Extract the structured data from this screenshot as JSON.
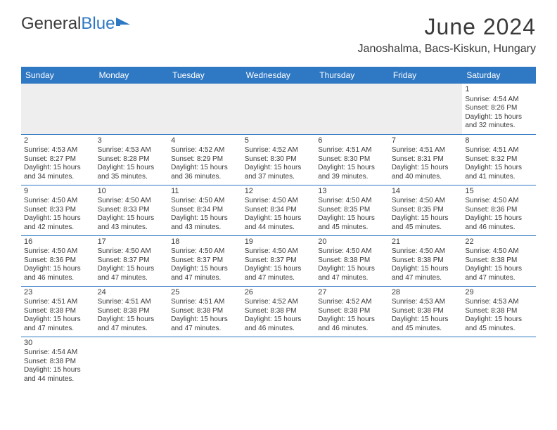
{
  "logo": {
    "part1": "General",
    "part2": "Blue"
  },
  "title": "June 2024",
  "location": "Janoshalma, Bacs-Kiskun, Hungary",
  "colors": {
    "header_bg": "#2f78c3",
    "header_text": "#ffffff",
    "text": "#3a3a3a",
    "empty_bg": "#eeeeee",
    "row_border": "#2f78c3"
  },
  "weekdays": [
    "Sunday",
    "Monday",
    "Tuesday",
    "Wednesday",
    "Thursday",
    "Friday",
    "Saturday"
  ],
  "days": {
    "1": {
      "sunrise": "4:54 AM",
      "sunset": "8:26 PM",
      "dl1": "15 hours",
      "dl2": "and 32 minutes."
    },
    "2": {
      "sunrise": "4:53 AM",
      "sunset": "8:27 PM",
      "dl1": "15 hours",
      "dl2": "and 34 minutes."
    },
    "3": {
      "sunrise": "4:53 AM",
      "sunset": "8:28 PM",
      "dl1": "15 hours",
      "dl2": "and 35 minutes."
    },
    "4": {
      "sunrise": "4:52 AM",
      "sunset": "8:29 PM",
      "dl1": "15 hours",
      "dl2": "and 36 minutes."
    },
    "5": {
      "sunrise": "4:52 AM",
      "sunset": "8:30 PM",
      "dl1": "15 hours",
      "dl2": "and 37 minutes."
    },
    "6": {
      "sunrise": "4:51 AM",
      "sunset": "8:30 PM",
      "dl1": "15 hours",
      "dl2": "and 39 minutes."
    },
    "7": {
      "sunrise": "4:51 AM",
      "sunset": "8:31 PM",
      "dl1": "15 hours",
      "dl2": "and 40 minutes."
    },
    "8": {
      "sunrise": "4:51 AM",
      "sunset": "8:32 PM",
      "dl1": "15 hours",
      "dl2": "and 41 minutes."
    },
    "9": {
      "sunrise": "4:50 AM",
      "sunset": "8:33 PM",
      "dl1": "15 hours",
      "dl2": "and 42 minutes."
    },
    "10": {
      "sunrise": "4:50 AM",
      "sunset": "8:33 PM",
      "dl1": "15 hours",
      "dl2": "and 43 minutes."
    },
    "11": {
      "sunrise": "4:50 AM",
      "sunset": "8:34 PM",
      "dl1": "15 hours",
      "dl2": "and 43 minutes."
    },
    "12": {
      "sunrise": "4:50 AM",
      "sunset": "8:34 PM",
      "dl1": "15 hours",
      "dl2": "and 44 minutes."
    },
    "13": {
      "sunrise": "4:50 AM",
      "sunset": "8:35 PM",
      "dl1": "15 hours",
      "dl2": "and 45 minutes."
    },
    "14": {
      "sunrise": "4:50 AM",
      "sunset": "8:35 PM",
      "dl1": "15 hours",
      "dl2": "and 45 minutes."
    },
    "15": {
      "sunrise": "4:50 AM",
      "sunset": "8:36 PM",
      "dl1": "15 hours",
      "dl2": "and 46 minutes."
    },
    "16": {
      "sunrise": "4:50 AM",
      "sunset": "8:36 PM",
      "dl1": "15 hours",
      "dl2": "and 46 minutes."
    },
    "17": {
      "sunrise": "4:50 AM",
      "sunset": "8:37 PM",
      "dl1": "15 hours",
      "dl2": "and 47 minutes."
    },
    "18": {
      "sunrise": "4:50 AM",
      "sunset": "8:37 PM",
      "dl1": "15 hours",
      "dl2": "and 47 minutes."
    },
    "19": {
      "sunrise": "4:50 AM",
      "sunset": "8:37 PM",
      "dl1": "15 hours",
      "dl2": "and 47 minutes."
    },
    "20": {
      "sunrise": "4:50 AM",
      "sunset": "8:38 PM",
      "dl1": "15 hours",
      "dl2": "and 47 minutes."
    },
    "21": {
      "sunrise": "4:50 AM",
      "sunset": "8:38 PM",
      "dl1": "15 hours",
      "dl2": "and 47 minutes."
    },
    "22": {
      "sunrise": "4:50 AM",
      "sunset": "8:38 PM",
      "dl1": "15 hours",
      "dl2": "and 47 minutes."
    },
    "23": {
      "sunrise": "4:51 AM",
      "sunset": "8:38 PM",
      "dl1": "15 hours",
      "dl2": "and 47 minutes."
    },
    "24": {
      "sunrise": "4:51 AM",
      "sunset": "8:38 PM",
      "dl1": "15 hours",
      "dl2": "and 47 minutes."
    },
    "25": {
      "sunrise": "4:51 AM",
      "sunset": "8:38 PM",
      "dl1": "15 hours",
      "dl2": "and 47 minutes."
    },
    "26": {
      "sunrise": "4:52 AM",
      "sunset": "8:38 PM",
      "dl1": "15 hours",
      "dl2": "and 46 minutes."
    },
    "27": {
      "sunrise": "4:52 AM",
      "sunset": "8:38 PM",
      "dl1": "15 hours",
      "dl2": "and 46 minutes."
    },
    "28": {
      "sunrise": "4:53 AM",
      "sunset": "8:38 PM",
      "dl1": "15 hours",
      "dl2": "and 45 minutes."
    },
    "29": {
      "sunrise": "4:53 AM",
      "sunset": "8:38 PM",
      "dl1": "15 hours",
      "dl2": "and 45 minutes."
    },
    "30": {
      "sunrise": "4:54 AM",
      "sunset": "8:38 PM",
      "dl1": "15 hours",
      "dl2": "and 44 minutes."
    }
  },
  "labels": {
    "sunrise": "Sunrise:",
    "sunset": "Sunset:",
    "daylight": "Daylight:"
  },
  "layout": [
    [
      null,
      null,
      null,
      null,
      null,
      null,
      "1"
    ],
    [
      "2",
      "3",
      "4",
      "5",
      "6",
      "7",
      "8"
    ],
    [
      "9",
      "10",
      "11",
      "12",
      "13",
      "14",
      "15"
    ],
    [
      "16",
      "17",
      "18",
      "19",
      "20",
      "21",
      "22"
    ],
    [
      "23",
      "24",
      "25",
      "26",
      "27",
      "28",
      "29"
    ],
    [
      "30",
      null,
      null,
      null,
      null,
      null,
      null
    ]
  ]
}
